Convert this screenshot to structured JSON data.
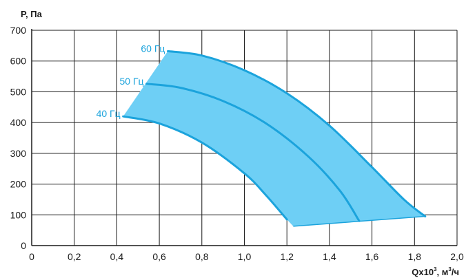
{
  "chart_data": {
    "type": "area",
    "ylabel": "P, Па",
    "xlabel": {
      "prefix": "Qx10",
      "sup1": "3",
      "mid": ", м",
      "sup2": "3",
      "suffix": "/ч"
    },
    "xlim": [
      0,
      2.0
    ],
    "ylim": [
      0,
      700
    ],
    "x_ticks": [
      0,
      0.2,
      0.4,
      0.6,
      0.8,
      1.0,
      1.2,
      1.4,
      1.6,
      1.8,
      2.0
    ],
    "x_tick_labels": [
      "0",
      "0,2",
      "0,4",
      "0,6",
      "0,8",
      "1,0",
      "1,2",
      "1,4",
      "1,6",
      "1,8",
      "2,0"
    ],
    "y_ticks": [
      0,
      100,
      200,
      300,
      400,
      500,
      600,
      700
    ],
    "y_tick_labels": [
      "0",
      "100",
      "200",
      "300",
      "400",
      "500",
      "600",
      "700"
    ],
    "grid": true,
    "colors": {
      "fill": "#6ecff5",
      "line": "#1ba3dc",
      "grid": "#1a1a1a"
    },
    "series": [
      {
        "name": "40 Гц",
        "x": [
          0.43,
          0.6,
          0.8,
          1.0,
          1.1,
          1.2
        ],
        "y": [
          420,
          397,
          335,
          235,
          165,
          85
        ]
      },
      {
        "name": "50 Гц",
        "x": [
          0.54,
          0.7,
          0.9,
          1.1,
          1.3,
          1.45,
          1.54
        ],
        "y": [
          526,
          513,
          470,
          398,
          290,
          178,
          80
        ]
      },
      {
        "name": "60 Гц",
        "x": [
          0.64,
          0.8,
          1.0,
          1.2,
          1.4,
          1.6,
          1.75,
          1.85
        ],
        "y": [
          632,
          618,
          570,
          495,
          390,
          255,
          150,
          95
        ]
      }
    ],
    "region_bottom_edge": {
      "x": [
        1.23,
        1.85
      ],
      "y": [
        63,
        95
      ]
    }
  }
}
